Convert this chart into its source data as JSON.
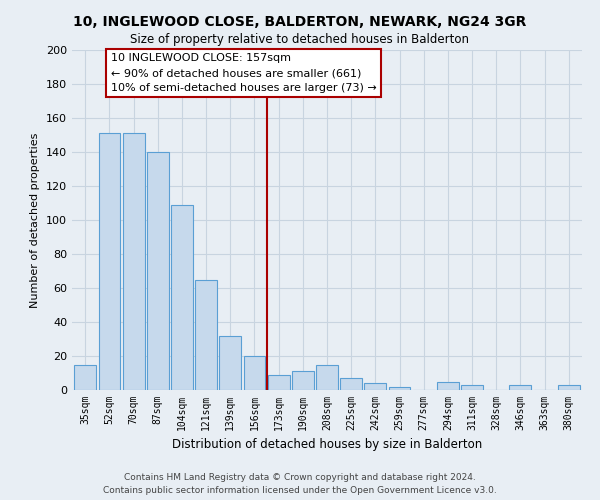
{
  "title": "10, INGLEWOOD CLOSE, BALDERTON, NEWARK, NG24 3GR",
  "subtitle": "Size of property relative to detached houses in Balderton",
  "xlabel": "Distribution of detached houses by size in Balderton",
  "ylabel": "Number of detached properties",
  "categories": [
    "35sqm",
    "52sqm",
    "70sqm",
    "87sqm",
    "104sqm",
    "121sqm",
    "139sqm",
    "156sqm",
    "173sqm",
    "190sqm",
    "208sqm",
    "225sqm",
    "242sqm",
    "259sqm",
    "277sqm",
    "294sqm",
    "311sqm",
    "328sqm",
    "346sqm",
    "363sqm",
    "380sqm"
  ],
  "values": [
    15,
    151,
    151,
    140,
    109,
    65,
    32,
    20,
    9,
    11,
    15,
    7,
    4,
    2,
    0,
    5,
    3,
    0,
    3,
    0,
    3
  ],
  "bar_color": "#c6d9ec",
  "bar_edge_color": "#5a9fd4",
  "highlight_line_color": "#aa0000",
  "ylim": [
    0,
    200
  ],
  "yticks": [
    0,
    20,
    40,
    60,
    80,
    100,
    120,
    140,
    160,
    180,
    200
  ],
  "annotation_title": "10 INGLEWOOD CLOSE: 157sqm",
  "annotation_line1": "← 90% of detached houses are smaller (661)",
  "annotation_line2": "10% of semi-detached houses are larger (73) →",
  "annotation_box_color": "#ffffff",
  "annotation_box_edge": "#aa0000",
  "footer_line1": "Contains HM Land Registry data © Crown copyright and database right 2024.",
  "footer_line2": "Contains public sector information licensed under the Open Government Licence v3.0.",
  "background_color": "#e8eef4",
  "grid_color": "#d0d8e4"
}
